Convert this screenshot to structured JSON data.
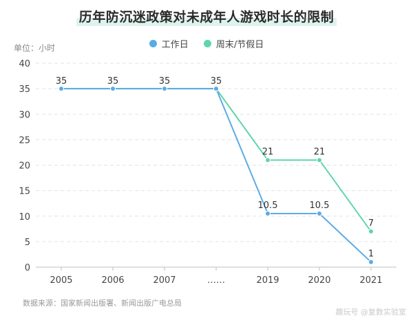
{
  "chart_data": {
    "type": "line",
    "title": "历年防沉迷政策对未成年人游戏时长的限制",
    "unit_label": "单位：小时",
    "categories": [
      "2005",
      "2006",
      "2007",
      "……",
      "2019",
      "2020",
      "2021"
    ],
    "series": [
      {
        "name": "工作日",
        "color": "#5AABE7",
        "values": [
          35,
          35,
          35,
          35,
          10.5,
          10.5,
          1
        ]
      },
      {
        "name": "周末/节假日",
        "color": "#5FD6A9",
        "values": [
          35,
          35,
          35,
          35,
          21,
          21,
          7
        ]
      }
    ],
    "data_labels": [
      "35",
      "35",
      "35",
      "35",
      "10.5",
      "10.5",
      "1",
      "21",
      "21",
      "7"
    ],
    "ylim": [
      0,
      40
    ],
    "yticks": [
      "0",
      "5",
      "10",
      "15",
      "20",
      "25",
      "30",
      "35",
      "40"
    ],
    "grid": true,
    "legend_position": "top-center"
  },
  "source_text": "数据来源：国家新闻出版署、新闻出版广电总局",
  "watermark_text": "趣玩号 @复数实验室"
}
